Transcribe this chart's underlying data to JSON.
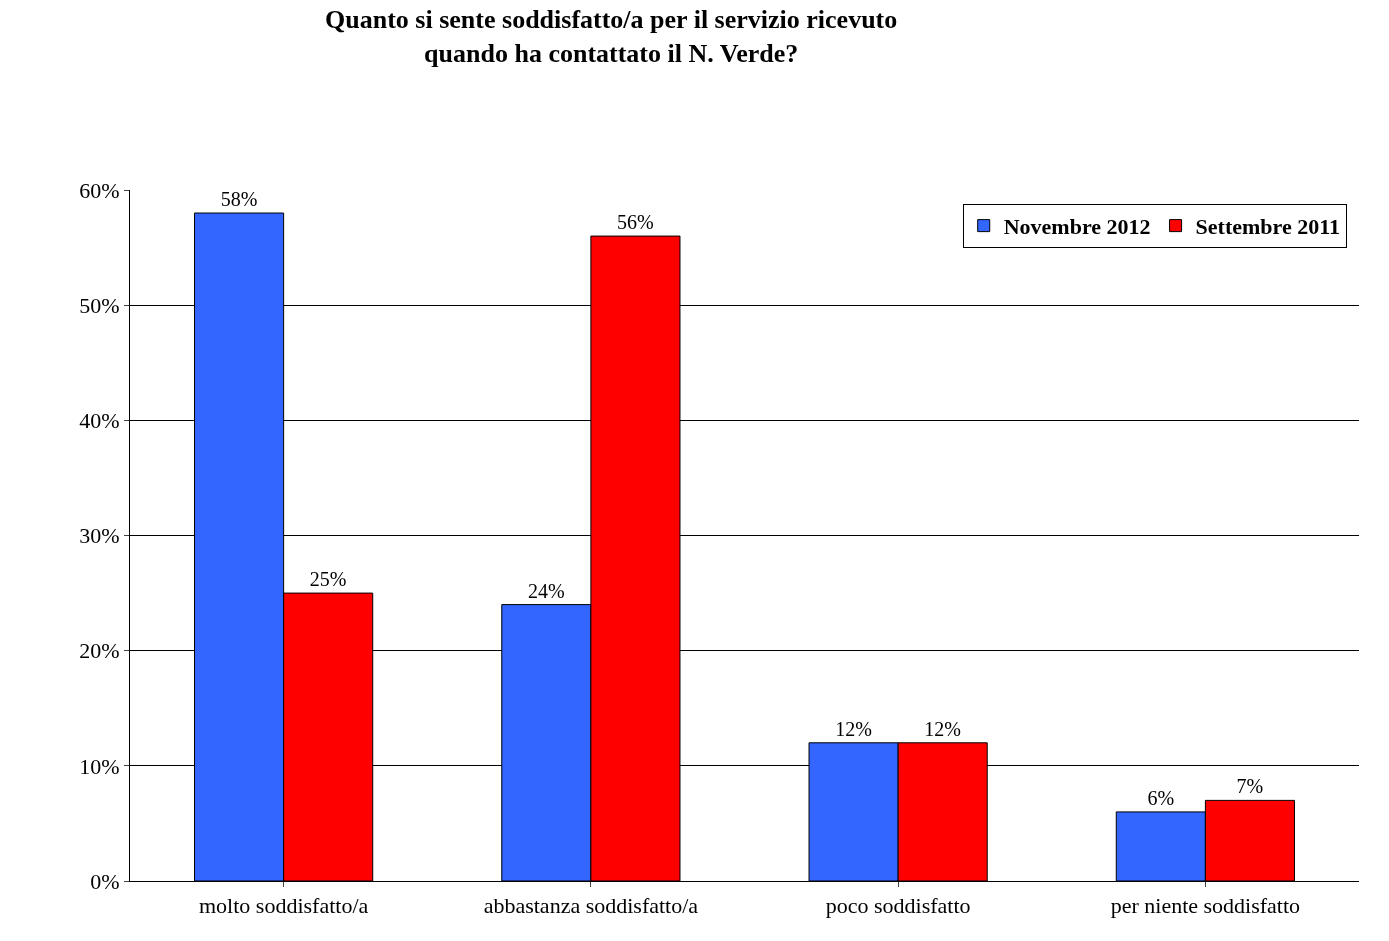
{
  "chart_data": {
    "type": "bar",
    "title": "Quanto si sente soddisfatto/a per il servizio ricevuto\nquando ha contattato il N. Verde?",
    "categories": [
      "molto soddisfatto/a",
      "abbastanza soddisfatto/a",
      "poco soddisfatto",
      "per niente soddisfatto"
    ],
    "series": [
      {
        "name": "Novembre 2012",
        "color": "#3366ff",
        "values": [
          58,
          24,
          12,
          6
        ],
        "value_labels": [
          "58%",
          "24%",
          "12%",
          "6%"
        ]
      },
      {
        "name": "Settembre 2011",
        "color": "#ff0000",
        "values": [
          25,
          56,
          12,
          7
        ],
        "value_labels": [
          "25%",
          "56%",
          "12%",
          "7%"
        ]
      }
    ],
    "ylim": [
      0,
      60
    ],
    "yticks": [
      {
        "value": 0,
        "label": "0%"
      },
      {
        "value": 10,
        "label": "10%"
      },
      {
        "value": 20,
        "label": "20%"
      },
      {
        "value": 30,
        "label": "30%"
      },
      {
        "value": 40,
        "label": "40%"
      },
      {
        "value": 50,
        "label": "50%"
      },
      {
        "value": 60,
        "label": "60%"
      }
    ],
    "grid": "y",
    "legend": "top right"
  }
}
